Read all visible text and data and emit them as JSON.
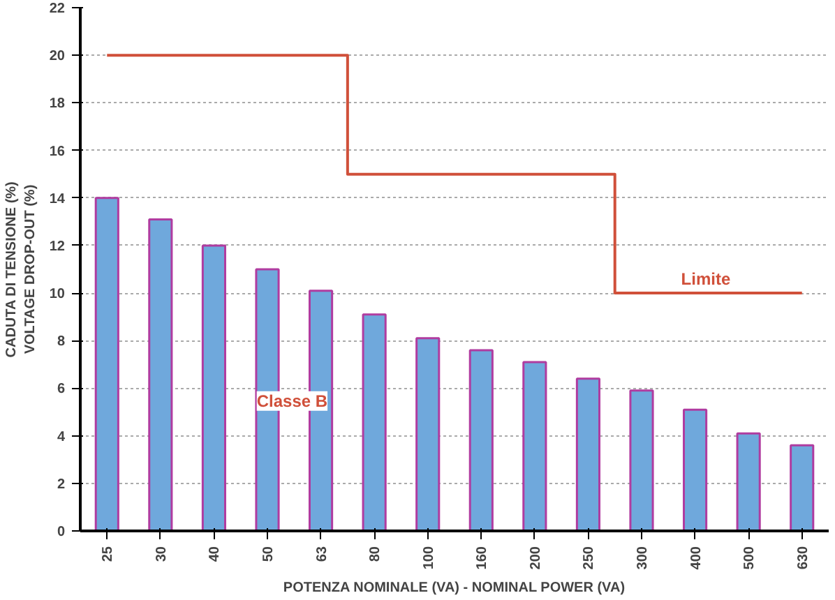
{
  "chart_data": {
    "type": "bar",
    "categories": [
      "25",
      "30",
      "40",
      "50",
      "63",
      "80",
      "100",
      "160",
      "200",
      "250",
      "300",
      "400",
      "500",
      "630"
    ],
    "series": [
      {
        "name": "Classe B",
        "color": "#6fa8dc",
        "values": [
          14,
          13.1,
          12,
          11,
          10.1,
          9.1,
          8.1,
          7.6,
          7.1,
          6.4,
          5.9,
          5.1,
          4.1,
          3.6
        ]
      },
      {
        "name": "Limite",
        "type": "step",
        "color": "#d0503a",
        "values": [
          20,
          20,
          20,
          20,
          20,
          15,
          15,
          15,
          15,
          15,
          10,
          10,
          10,
          10
        ]
      }
    ],
    "xlabel": "POTENZA NOMINALE (VA) - NOMINAL POWER (VA)",
    "ylabel": "CADUTA DI TENSIONE (%)\nVOLTAGE DROP-OUT (%)",
    "ylim": [
      0,
      22
    ],
    "yticks": [
      0,
      2,
      4,
      6,
      8,
      10,
      12,
      14,
      16,
      18,
      20,
      22
    ],
    "grid": "y"
  }
}
